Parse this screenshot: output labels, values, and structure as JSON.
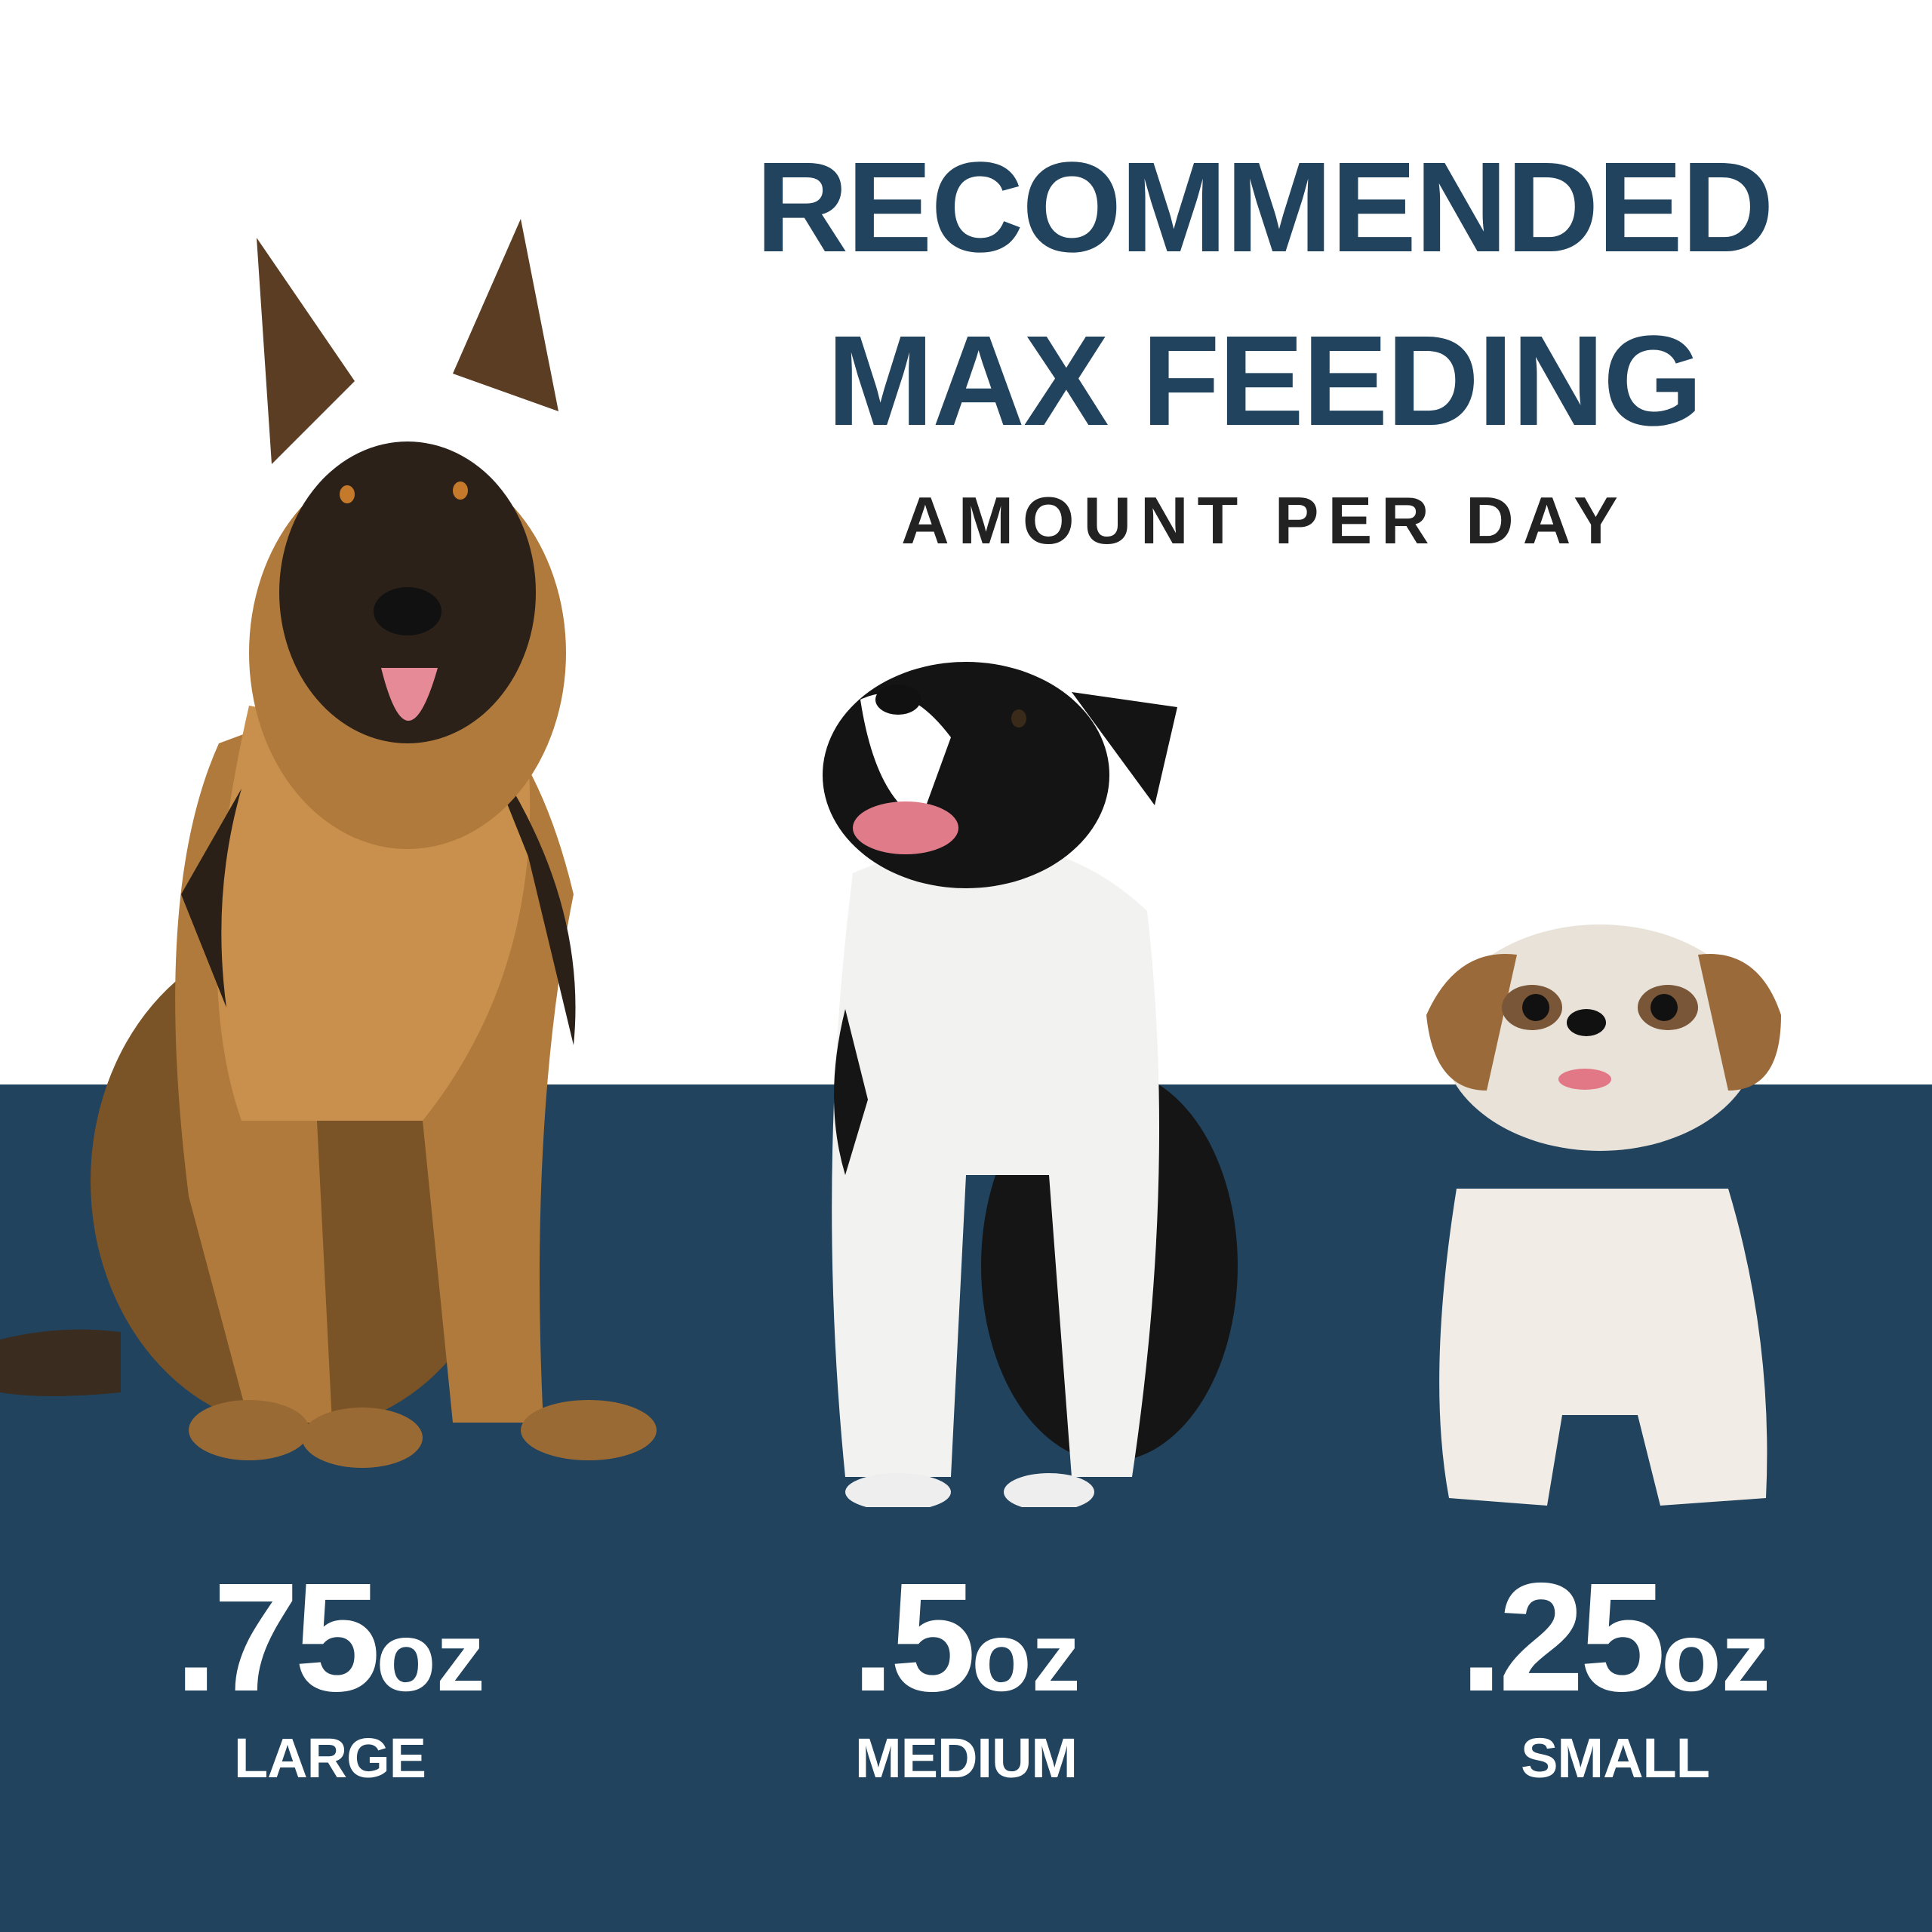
{
  "colors": {
    "navy": "#21435e",
    "background": "#ffffff",
    "subtitle": "#222222",
    "stat_text": "#ffffff"
  },
  "header": {
    "title_line1": "RECOMMENDED",
    "title_line2": "MAX FEEDING",
    "subtitle": "AMOUNT PER DAY"
  },
  "sizes": [
    {
      "amount": ".75",
      "unit": "oz",
      "label": "LARGE",
      "dog": "german-shepherd"
    },
    {
      "amount": ".5",
      "unit": "oz",
      "label": "MEDIUM",
      "dog": "border-collie"
    },
    {
      "amount": ".25",
      "unit": "oz",
      "label": "SMALL",
      "dog": "shih-tzu"
    }
  ]
}
